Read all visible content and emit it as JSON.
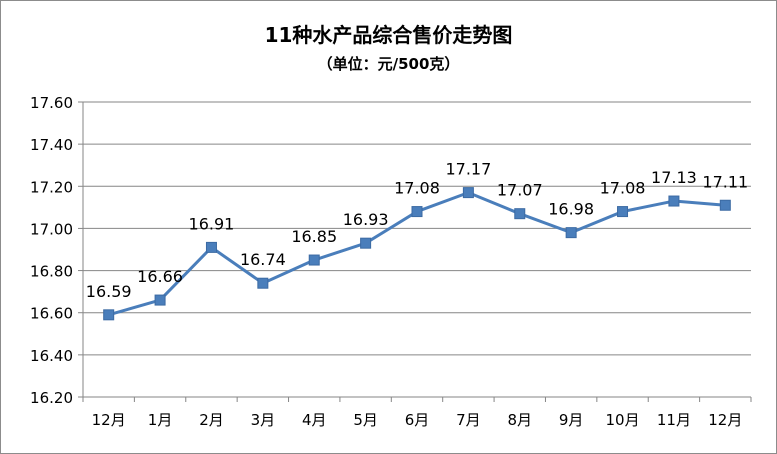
{
  "chart_data": {
    "type": "line",
    "title": "11种水产品综合售价走势图",
    "subtitle": "（单位：元/500克）",
    "categories": [
      "12月",
      "1月",
      "2月",
      "3月",
      "4月",
      "5月",
      "6月",
      "7月",
      "8月",
      "9月",
      "10月",
      "11月",
      "12月"
    ],
    "series": [
      {
        "values": [
          16.59,
          16.66,
          16.91,
          16.74,
          16.85,
          16.93,
          17.08,
          17.17,
          17.07,
          16.98,
          17.08,
          17.13,
          17.11
        ],
        "color": "#4a7ebb",
        "marker": "square"
      }
    ],
    "data_labels": [
      "16.59",
      "16.66",
      "16.91",
      "16.74",
      "16.85",
      "16.93",
      "17.08",
      "17.17",
      "17.07",
      "16.98",
      "17.08",
      "17.13",
      "17.11"
    ],
    "y_ticks": [
      "16.20",
      "16.40",
      "16.60",
      "16.80",
      "17.00",
      "17.20",
      "17.40",
      "17.60"
    ],
    "ylim": [
      16.2,
      17.6
    ],
    "grid": true,
    "legend": "none"
  }
}
